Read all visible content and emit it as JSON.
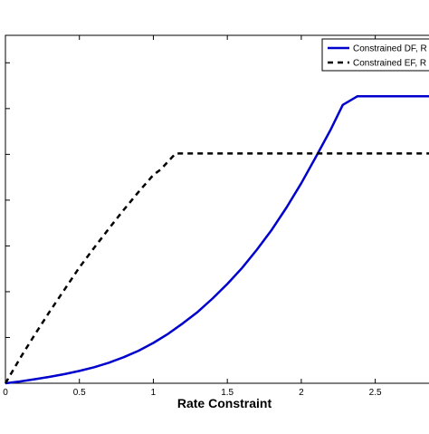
{
  "chart_data": {
    "type": "line",
    "title": "",
    "xlabel": "Rate Constraint",
    "ylabel": "",
    "xlim": [
      0,
      2.9
    ],
    "ylim": [
      0,
      7.6
    ],
    "xticks": [
      0,
      0.5,
      1,
      1.5,
      2,
      2.5
    ],
    "xtick_labels": [
      "0",
      "0.5",
      "1",
      "1.5",
      "2",
      "2.5"
    ],
    "yticks": [
      1,
      2,
      3,
      4,
      5,
      6,
      7
    ],
    "grid": false,
    "legend_position": "top-right",
    "series": [
      {
        "name": "Constrained DF, R",
        "color": "#0000cc",
        "line_style": "solid",
        "x": [
          0,
          0.1,
          0.2,
          0.3,
          0.4,
          0.5,
          0.6,
          0.7,
          0.8,
          0.9,
          1.0,
          1.1,
          1.2,
          1.3,
          1.4,
          1.5,
          1.6,
          1.7,
          1.8,
          1.9,
          2.0,
          2.1,
          2.2,
          2.28,
          2.38,
          2.5,
          2.9
        ],
        "y": [
          0.0,
          0.04,
          0.09,
          0.14,
          0.2,
          0.27,
          0.35,
          0.45,
          0.57,
          0.71,
          0.88,
          1.08,
          1.31,
          1.56,
          1.85,
          2.17,
          2.52,
          2.92,
          3.35,
          3.84,
          4.37,
          4.95,
          5.55,
          6.08,
          6.27,
          6.27,
          6.27
        ]
      },
      {
        "name": "Constrained EF, R",
        "color": "#000000",
        "line_style": "dashed",
        "x": [
          0,
          0.1,
          0.2,
          0.3,
          0.4,
          0.5,
          0.6,
          0.7,
          0.8,
          0.9,
          1.0,
          1.05,
          1.15,
          1.3,
          2.9
        ],
        "y": [
          0.0,
          0.55,
          1.07,
          1.57,
          2.05,
          2.53,
          2.96,
          3.38,
          3.79,
          4.18,
          4.55,
          4.67,
          5.02,
          5.02,
          5.02
        ]
      }
    ]
  }
}
